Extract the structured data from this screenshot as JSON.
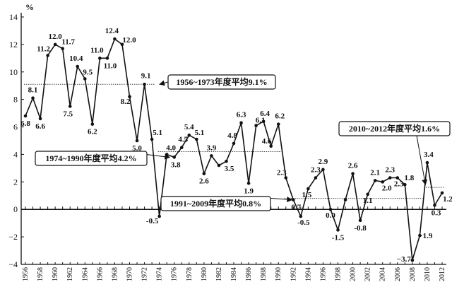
{
  "chart_data": {
    "type": "line",
    "ylabel": "%",
    "ylim": [
      -4,
      14
    ],
    "yticks": [
      -4,
      -2,
      0,
      2,
      4,
      6,
      8,
      10,
      12,
      14
    ],
    "x": [
      1956,
      1957,
      1958,
      1959,
      1960,
      1961,
      1962,
      1963,
      1964,
      1965,
      1966,
      1967,
      1968,
      1969,
      1970,
      1971,
      1972,
      1973,
      1974,
      1975,
      1976,
      1977,
      1978,
      1979,
      1980,
      1981,
      1982,
      1983,
      1984,
      1985,
      1986,
      1987,
      1988,
      1989,
      1990,
      1991,
      1992,
      1993,
      1994,
      1995,
      1996,
      1997,
      1998,
      1999,
      2000,
      2001,
      2002,
      2003,
      2004,
      2005,
      2006,
      2007,
      2008,
      2009,
      2010,
      2011,
      2012
    ],
    "xticks": [
      1956,
      1958,
      1960,
      1962,
      1964,
      1966,
      1968,
      1970,
      1972,
      1974,
      1976,
      1978,
      1980,
      1982,
      1984,
      1986,
      1988,
      1990,
      1992,
      1994,
      1996,
      1998,
      2000,
      2002,
      2004,
      2006,
      2008,
      2010,
      2012
    ],
    "series": [
      {
        "values": [
          6.8,
          8.1,
          6.6,
          11.2,
          12.0,
          11.7,
          7.5,
          10.4,
          9.5,
          6.2,
          11.0,
          11.0,
          12.4,
          12.0,
          8.2,
          5.0,
          9.1,
          5.1,
          -0.5,
          4.0,
          3.8,
          4.5,
          5.4,
          5.1,
          2.6,
          3.9,
          3.2,
          3.5,
          4.8,
          6.3,
          1.9,
          6.1,
          6.4,
          4.6,
          6.2,
          2.3,
          0.7,
          -0.5,
          1.5,
          2.3,
          2.9,
          0.0,
          -1.5,
          0.7,
          2.6,
          -0.8,
          1.1,
          2.1,
          2.0,
          2.3,
          2.3,
          1.8,
          -3.7,
          -1.9,
          3.4,
          0.3,
          1.2
        ],
        "point_labels": [
          "6.8",
          "8.1",
          "6.6",
          "11.2",
          "12.0",
          "11.7",
          "7.5",
          "10.4",
          "9.5",
          "6.2",
          "11.0",
          "11.0",
          "12.4",
          "12.0",
          "8.2",
          "5.0",
          "9.1",
          "5.1",
          "-0.5",
          "4.0",
          "3.8",
          "4.5",
          "5.4",
          "5.1",
          "2.6",
          "3.9",
          "",
          "3.5",
          "4.8",
          "6.3",
          "1.9",
          "6.1",
          "6.4",
          "4.6",
          "6.2",
          "2.3",
          "0.7",
          "-0.5",
          "1.5",
          "2.3",
          "2.9",
          "0.0",
          "-1.5",
          "",
          "2.6",
          "-0.8",
          "1.1",
          "2.1",
          "2.0",
          "2.3",
          "2.3",
          "1.8",
          "−3.7",
          "−1.9",
          "3.4",
          "0.3",
          "1.2"
        ]
      }
    ],
    "averages": [
      {
        "from": 1956,
        "to": 1973,
        "value": 9.1,
        "label": "1956~1973年度平均9.1%"
      },
      {
        "from": 1974,
        "to": 1990,
        "value": 4.2,
        "label": "1974~1990年度平均4.2%"
      },
      {
        "from": 1991,
        "to": 2009,
        "value": 0.8,
        "label": "1991~2009年度平均0.8%"
      },
      {
        "from": 2010,
        "to": 2012,
        "value": 1.6,
        "label": "2010~2012年度平均1.6%"
      }
    ],
    "grid": false
  }
}
